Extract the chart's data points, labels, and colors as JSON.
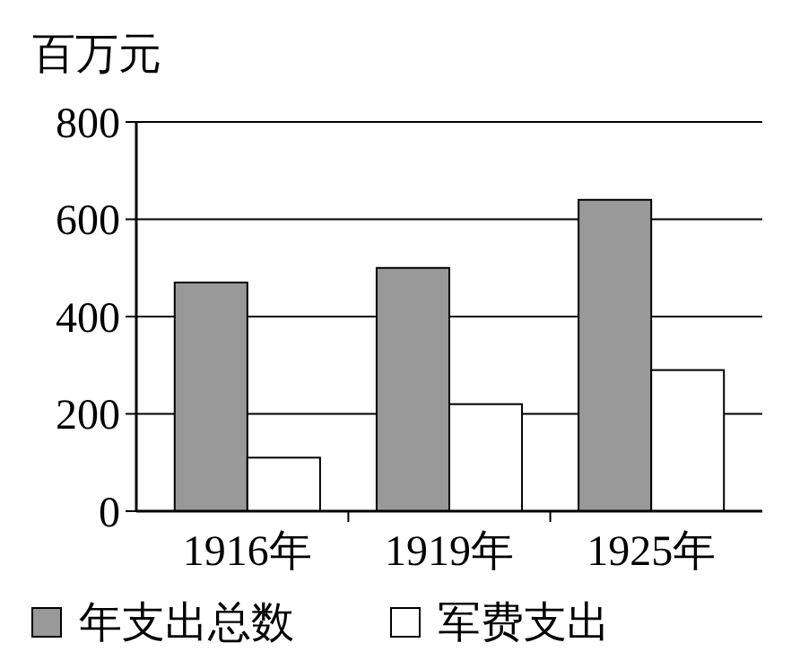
{
  "chart_data": {
    "type": "bar",
    "ylabel": "百万元",
    "categories": [
      "1916年",
      "1919年",
      "1925年"
    ],
    "series": [
      {
        "name": "年支出总数",
        "color": "#999999",
        "values": [
          470,
          500,
          640
        ]
      },
      {
        "name": "军费支出",
        "color": "#ffffff",
        "values": [
          110,
          220,
          290
        ]
      }
    ],
    "ylim": [
      0,
      800
    ],
    "yticks": [
      0,
      200,
      400,
      600,
      800
    ],
    "grid": "y",
    "legend": "bottom"
  }
}
